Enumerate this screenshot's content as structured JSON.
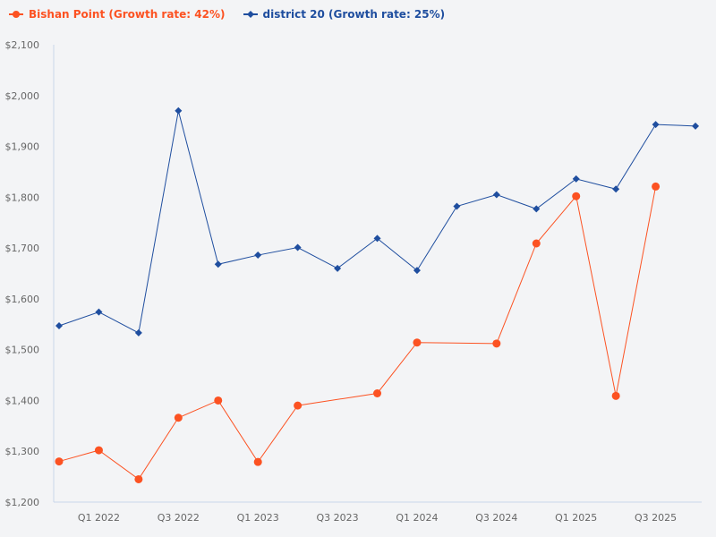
{
  "chart_data": {
    "type": "line",
    "title": "",
    "xlabel": "",
    "ylabel": "",
    "x": [
      "Q4 2021",
      "Q1 2022",
      "Q2 2022",
      "Q3 2022",
      "Q4 2022",
      "Q1 2023",
      "Q2 2023",
      "Q3 2023",
      "Q4 2023",
      "Q1 2024",
      "Q2 2024",
      "Q3 2024",
      "Q4 2024",
      "Q1 2025",
      "Q2 2025",
      "Q3 2025",
      "Q4 2025"
    ],
    "x_tick_labels": [
      "Q1 2022",
      "Q3 2022",
      "Q1 2023",
      "Q3 2023",
      "Q1 2024",
      "Q3 2024",
      "Q1 2025",
      "Q3 2025"
    ],
    "ylim": [
      1200,
      2100
    ],
    "y_ticks": [
      1200,
      1300,
      1400,
      1500,
      1600,
      1700,
      1800,
      1900,
      2000,
      2100
    ],
    "y_tick_labels": [
      "$1,200",
      "$1,300",
      "$1,400",
      "$1,500",
      "$1,600",
      "$1,700",
      "$1,800",
      "$1,900",
      "$2,000",
      "$2,100"
    ],
    "grid": false,
    "legend_position": "top-left",
    "series": [
      {
        "name": "Bishan Point (Growth rate: 42%)",
        "color": "#fc5222",
        "marker": "circle",
        "values": [
          1280,
          1302,
          1245,
          1366,
          1400,
          1279,
          1390,
          null,
          1414,
          1514,
          null,
          1512,
          1709,
          1802,
          1409,
          1821,
          null
        ]
      },
      {
        "name": "district 20 (Growth rate: 25%)",
        "color": "#1f4e9f",
        "marker": "diamond",
        "values": [
          1547,
          1574,
          1533,
          1970,
          1668,
          1686,
          1701,
          1660,
          1719,
          1656,
          1782,
          1805,
          1777,
          1836,
          1816,
          1943,
          1940
        ]
      }
    ]
  }
}
